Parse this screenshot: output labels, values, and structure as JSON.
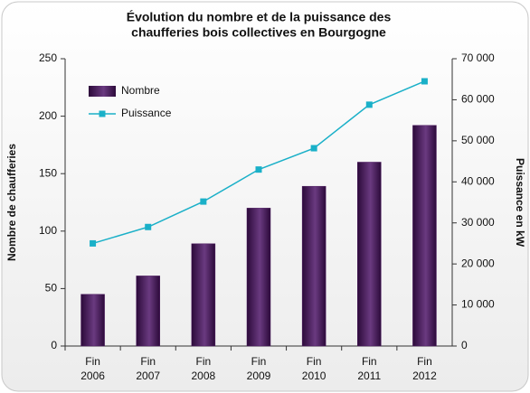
{
  "chart_data": {
    "type": "bar_line",
    "title": [
      "Évolution du nombre et de la puissance des",
      "chaufferies bois collectives en Bourgogne"
    ],
    "ylabel": "Nombre de chaufferies",
    "y2label": "Puissance en kW",
    "categories": [
      [
        "Fin",
        "2006"
      ],
      [
        "Fin",
        "2007"
      ],
      [
        "Fin",
        "2008"
      ],
      [
        "Fin",
        "2009"
      ],
      [
        "Fin",
        "2010"
      ],
      [
        "Fin",
        "2011"
      ],
      [
        "Fin",
        "2012"
      ]
    ],
    "series": [
      {
        "name": "Nombre",
        "type": "bar",
        "color": "#4b1a5e",
        "values": [
          45,
          61,
          89,
          120,
          139,
          160,
          192
        ]
      },
      {
        "name": "Puissance",
        "type": "line",
        "axis": "y2",
        "color": "#1ab0c8",
        "values": [
          25000,
          29000,
          35200,
          43000,
          48200,
          58800,
          64500
        ]
      }
    ],
    "ylim": [
      0,
      250
    ],
    "yticks": [
      0,
      50,
      100,
      150,
      200,
      250
    ],
    "y2lim": [
      0,
      70000
    ],
    "y2ticks": [
      0,
      {
        "value": 10000,
        "label": "10 000"
      },
      {
        "value": 20000,
        "label": "20 000"
      },
      {
        "value": 30000,
        "label": "30 000"
      },
      {
        "value": 40000,
        "label": "40 000"
      },
      {
        "value": 50000,
        "label": "50 000"
      },
      {
        "value": 60000,
        "label": "60 000"
      },
      {
        "value": 70000,
        "label": "70 000"
      }
    ],
    "legend": "upper left"
  }
}
